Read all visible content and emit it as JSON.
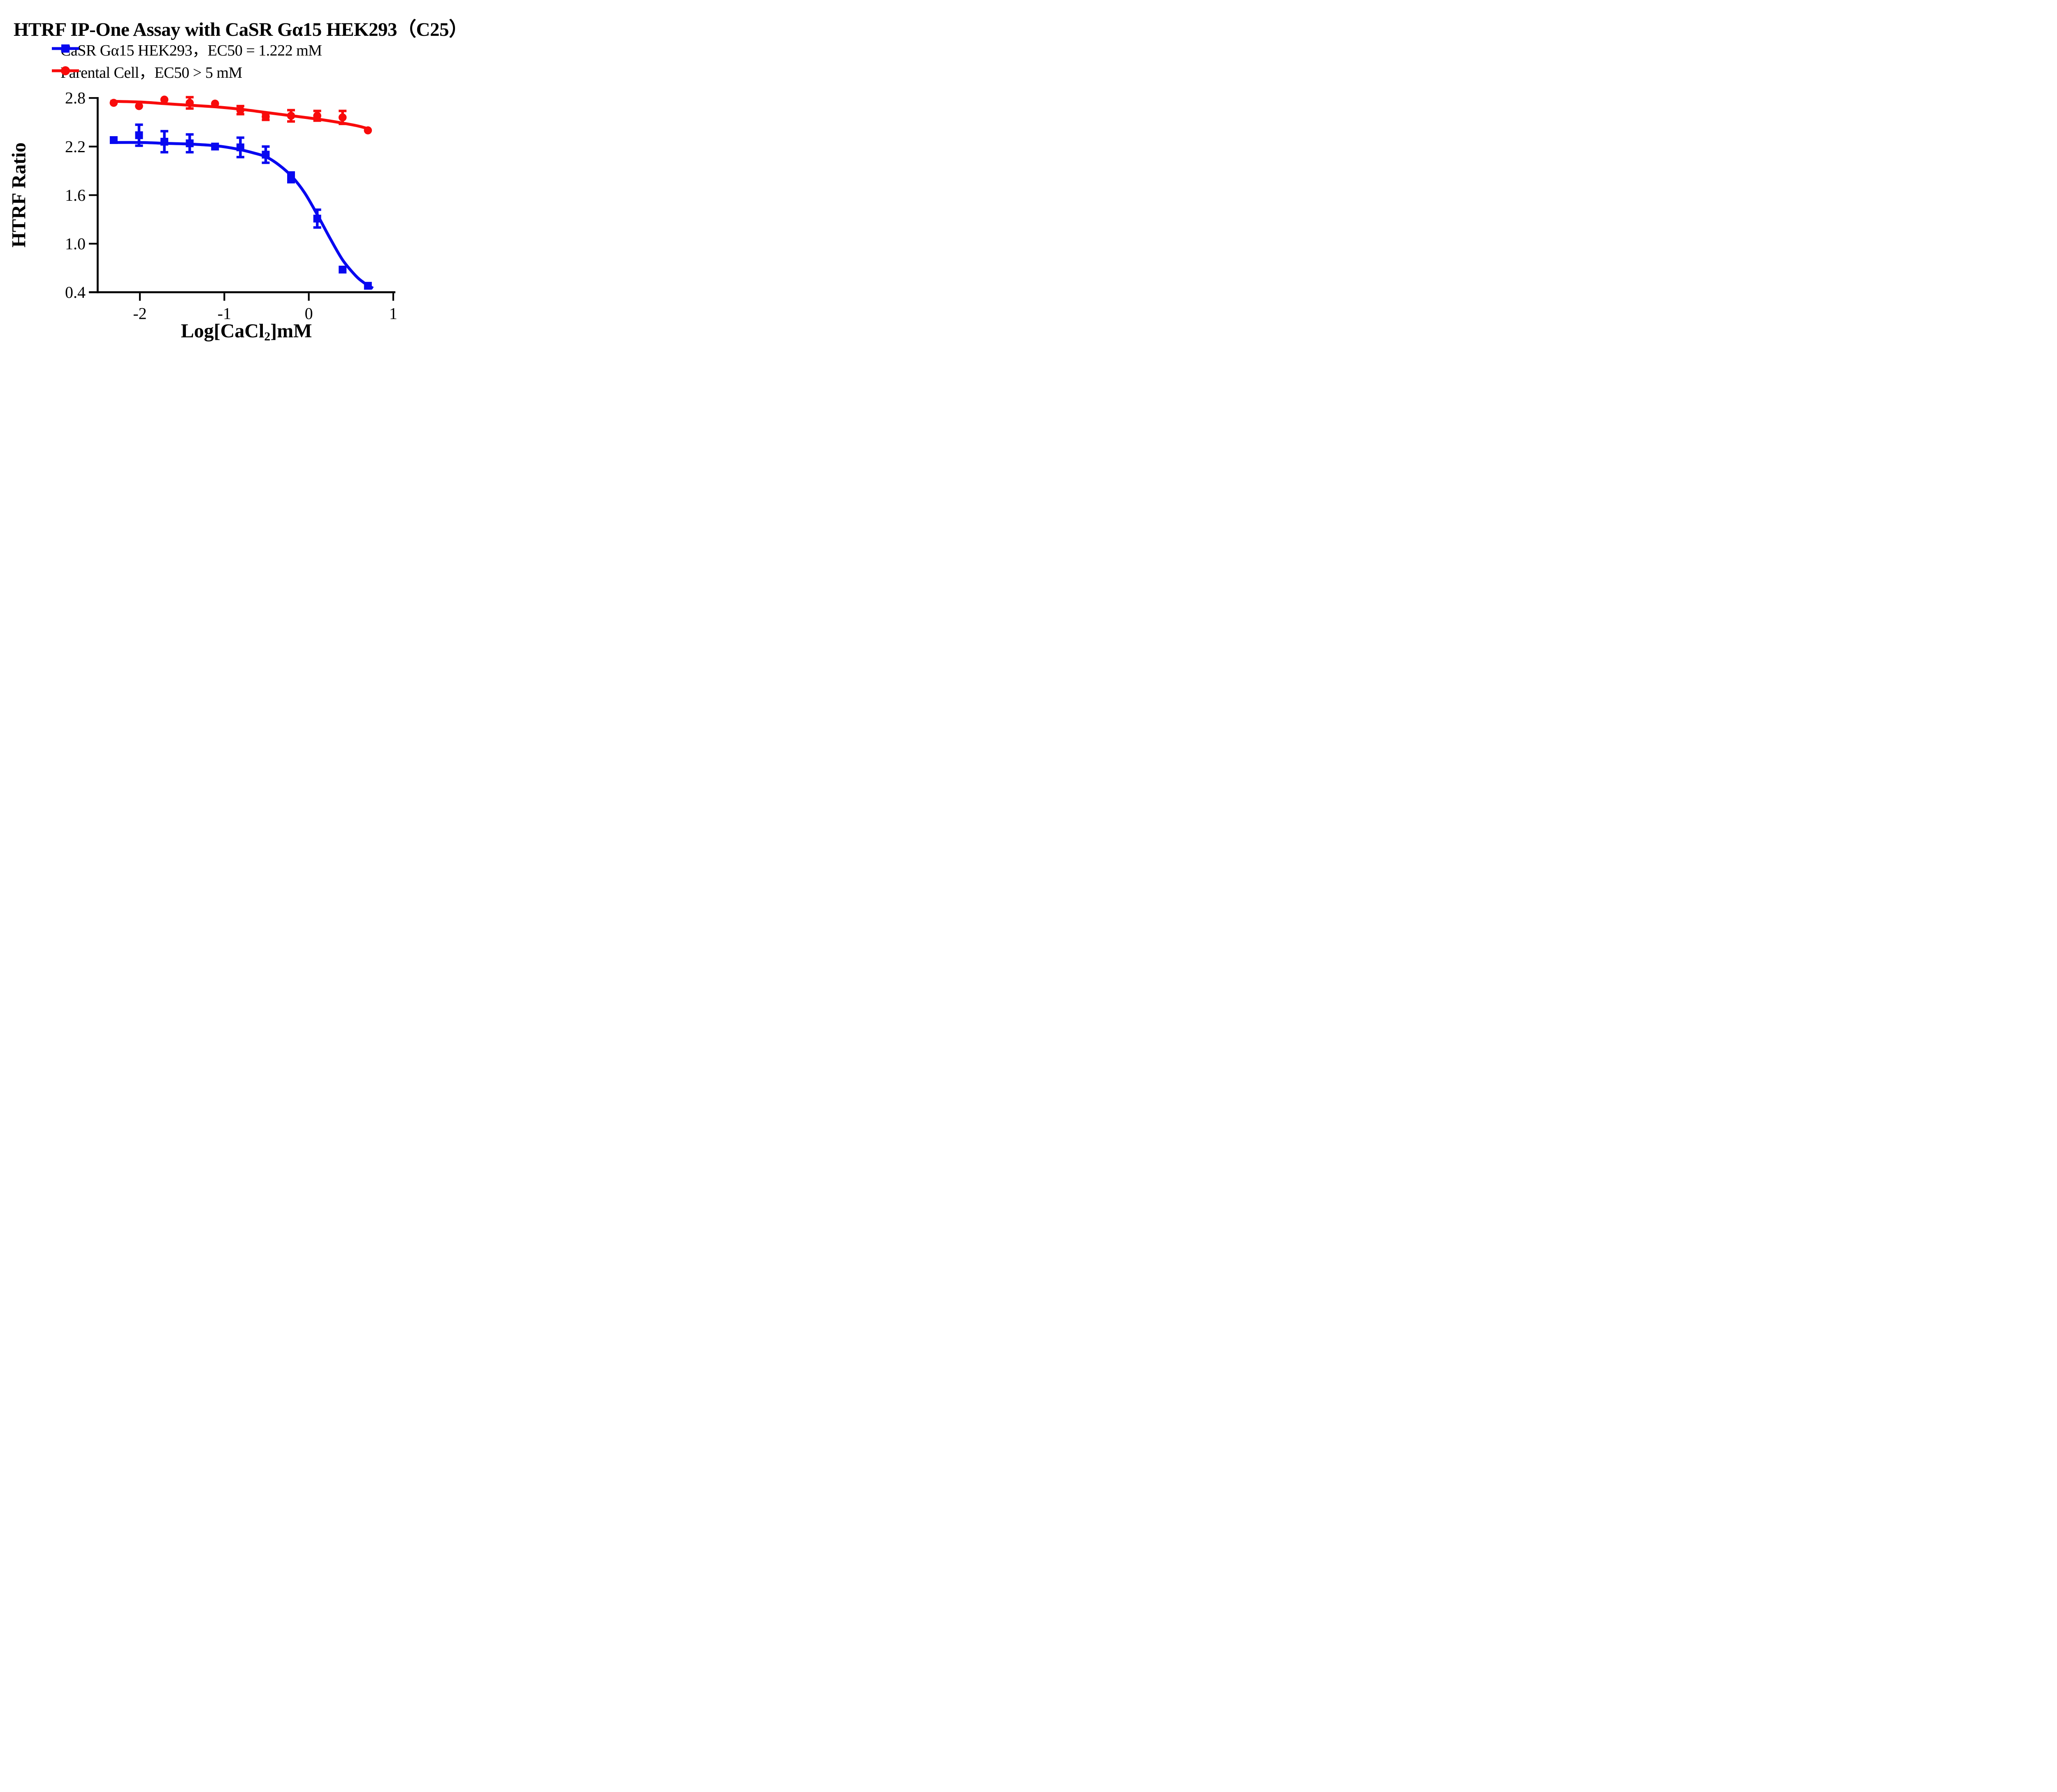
{
  "title": "HTRF IP-One Assay with CaSR Gα15 HEK293（C25）",
  "legend": [
    {
      "label": "CaSR Gα15 HEK293，EC50 = 1.222 mM",
      "marker": "square",
      "color": "#0808f0"
    },
    {
      "label": "Parental Cell，EC50 > 5 mM",
      "marker": "circle",
      "color": "#f80b0b"
    }
  ],
  "chart_data": {
    "type": "scatter",
    "title": "HTRF IP-One Assay with CaSR Gα15 HEK293（C25）",
    "xlabel": "Log[CaCl2]mM",
    "xlabel_parts": {
      "pre": "Log[CaCl",
      "sub": "2",
      "post": "]mM"
    },
    "ylabel": "HTRF Ratio",
    "xlim": [
      -2.6,
      1.05
    ],
    "ylim": [
      0.4,
      2.8
    ],
    "grid": false,
    "legend_position": "top-left",
    "xticks": [
      {
        "label": "-2",
        "value": -2
      },
      {
        "label": "-1",
        "value": -1
      },
      {
        "label": "0",
        "value": 0
      },
      {
        "label": "1",
        "value": 1
      }
    ],
    "yticks": [
      {
        "label": "2.8",
        "value": 2.8
      },
      {
        "label": "2.2",
        "value": 2.2
      },
      {
        "label": "1.6",
        "value": 1.6
      },
      {
        "label": "1.0",
        "value": 1.0
      },
      {
        "label": "0.4",
        "value": 0.4
      }
    ],
    "x": [
      -2.31,
      -2.01,
      -1.71,
      -1.41,
      -1.11,
      -0.81,
      -0.51,
      -0.21,
      0.1,
      0.4,
      0.7
    ],
    "series": [
      {
        "name": "CaSR Gα15 HEK293",
        "ec50": "EC50 = 1.222 mM",
        "marker": "square",
        "color": "#0808f0",
        "values": [
          2.28,
          2.34,
          2.26,
          2.24,
          2.2,
          2.19,
          2.1,
          1.82,
          1.31,
          0.68,
          0.48
        ],
        "errors": [
          0,
          0.13,
          0.13,
          0.11,
          0,
          0.12,
          0.1,
          0.06,
          0.11,
          0,
          0
        ],
        "fit_curve": [
          [
            -2.35,
            2.25
          ],
          [
            -2.0,
            2.25
          ],
          [
            -1.7,
            2.24
          ],
          [
            -1.4,
            2.23
          ],
          [
            -1.1,
            2.21
          ],
          [
            -0.85,
            2.17
          ],
          [
            -0.65,
            2.12
          ],
          [
            -0.5,
            2.07
          ],
          [
            -0.35,
            1.97
          ],
          [
            -0.2,
            1.83
          ],
          [
            -0.05,
            1.63
          ],
          [
            0.1,
            1.36
          ],
          [
            0.25,
            1.07
          ],
          [
            0.4,
            0.8
          ],
          [
            0.55,
            0.61
          ],
          [
            0.65,
            0.52
          ],
          [
            0.76,
            0.45
          ]
        ]
      },
      {
        "name": "Parental Cell",
        "ec50": "EC50 > 5 mM",
        "marker": "circle",
        "color": "#f80b0b",
        "values": [
          2.74,
          2.7,
          2.78,
          2.74,
          2.73,
          2.65,
          2.57,
          2.58,
          2.58,
          2.56,
          2.4
        ],
        "errors": [
          0,
          0,
          0,
          0.07,
          0,
          0.05,
          0.04,
          0.07,
          0.06,
          0.08,
          0
        ],
        "fit_curve": [
          [
            -2.35,
            2.76
          ],
          [
            -2.0,
            2.75
          ],
          [
            -1.7,
            2.73
          ],
          [
            -1.4,
            2.71
          ],
          [
            -1.1,
            2.69
          ],
          [
            -0.8,
            2.66
          ],
          [
            -0.5,
            2.62
          ],
          [
            -0.2,
            2.58
          ],
          [
            0.1,
            2.54
          ],
          [
            0.4,
            2.49
          ],
          [
            0.6,
            2.45
          ],
          [
            0.73,
            2.41
          ]
        ]
      }
    ]
  }
}
